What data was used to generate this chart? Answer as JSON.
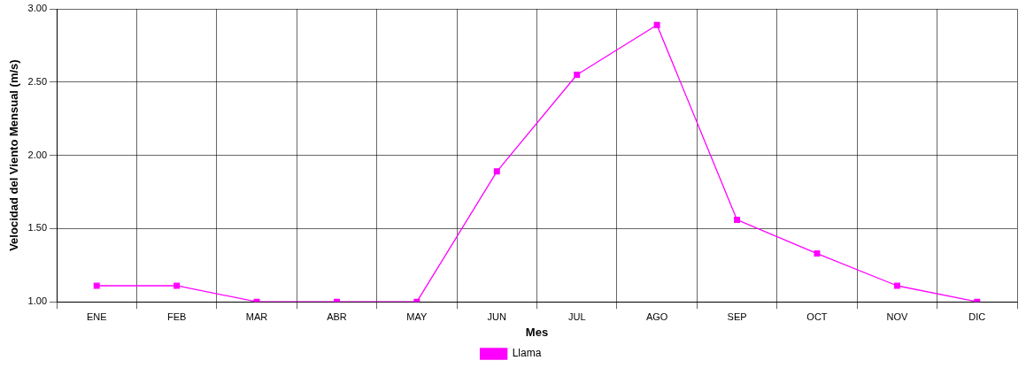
{
  "chart_data": {
    "type": "line",
    "xlabel": "Mes",
    "ylabel": "Velocidad del Viento Mensual (m/s)",
    "categories": [
      "ENE",
      "FEB",
      "MAR",
      "ABR",
      "MAY",
      "JUN",
      "JUL",
      "AGO",
      "SEP",
      "OCT",
      "NOV",
      "DIC"
    ],
    "series": [
      {
        "name": "Llama",
        "color": "#ff00ff",
        "values": [
          1.11,
          1.11,
          1.0,
          1.0,
          1.0,
          1.89,
          2.55,
          2.89,
          1.56,
          1.33,
          1.11,
          1.0
        ]
      }
    ],
    "ylim": [
      1,
      3
    ],
    "yticks": [
      {
        "value": 1,
        "label": "1.00"
      },
      {
        "value": 1.5,
        "label": "1.50"
      },
      {
        "value": 2,
        "label": "2.00"
      },
      {
        "value": 2.5,
        "label": "2.50"
      },
      {
        "value": 3,
        "label": "3.00"
      }
    ],
    "grid": true,
    "legend": "bottom",
    "marker": "square",
    "line_style": "solid"
  }
}
